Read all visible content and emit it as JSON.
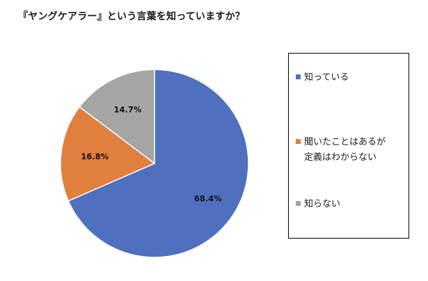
{
  "chart_data": {
    "type": "pie",
    "title": "『ヤングケアラー』という言葉を知っていますか？",
    "categories": [
      "知っている",
      "聞いたことはあるが定義はわからない",
      "知らない"
    ],
    "legend_labels": [
      "知っている",
      "聞いたことはあるが\n定義はわからない",
      "知らない"
    ],
    "values": [
      68.4,
      16.8,
      14.7
    ],
    "labels": [
      "68.4%",
      "16.8%",
      "14.7%"
    ],
    "colors": [
      "#4e70bf",
      "#e07f3e",
      "#a5a5a5"
    ],
    "start": "12 o'clock",
    "direction": "clockwise",
    "legend": "right"
  }
}
